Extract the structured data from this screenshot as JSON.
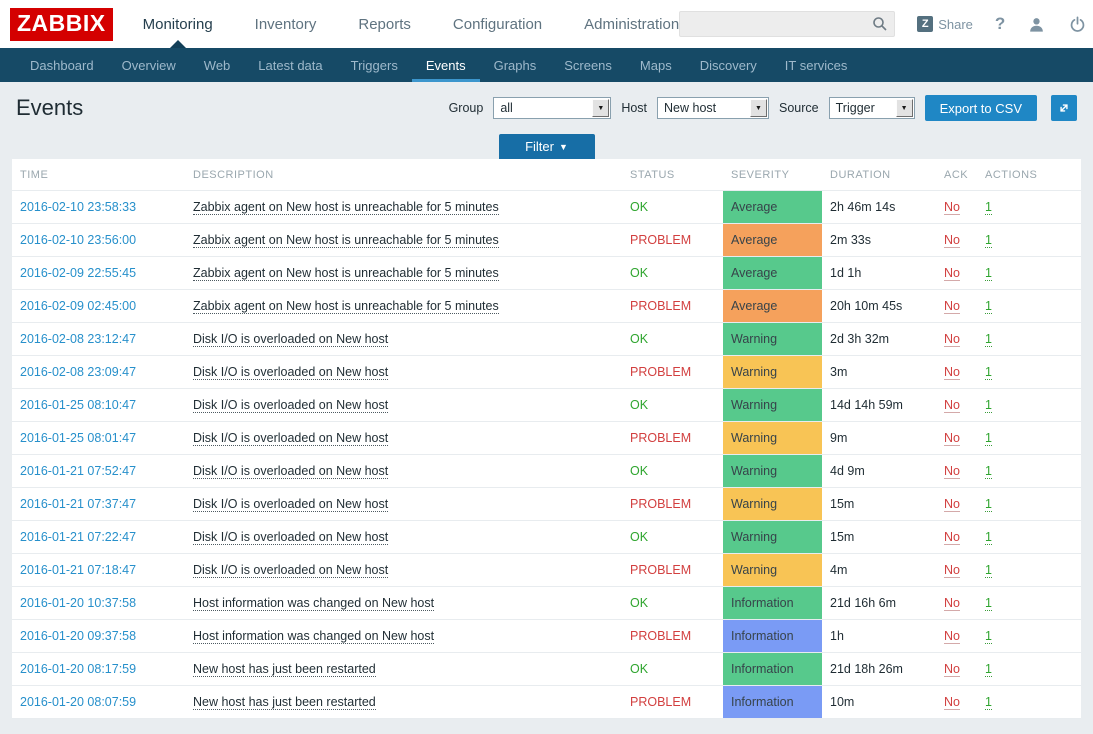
{
  "brand": {
    "logo_text": "ZABBIX"
  },
  "main_nav": {
    "items": [
      {
        "label": "Monitoring",
        "active": true
      },
      {
        "label": "Inventory",
        "active": false
      },
      {
        "label": "Reports",
        "active": false
      },
      {
        "label": "Configuration",
        "active": false
      },
      {
        "label": "Administration",
        "active": false
      }
    ]
  },
  "header_right": {
    "search_value": "",
    "search_placeholder": "",
    "share_badge": "Z",
    "share_label": "Share",
    "help_label": "?"
  },
  "sub_nav": {
    "items": [
      {
        "label": "Dashboard",
        "active": false
      },
      {
        "label": "Overview",
        "active": false
      },
      {
        "label": "Web",
        "active": false
      },
      {
        "label": "Latest data",
        "active": false
      },
      {
        "label": "Triggers",
        "active": false
      },
      {
        "label": "Events",
        "active": true
      },
      {
        "label": "Graphs",
        "active": false
      },
      {
        "label": "Screens",
        "active": false
      },
      {
        "label": "Maps",
        "active": false
      },
      {
        "label": "Discovery",
        "active": false
      },
      {
        "label": "IT services",
        "active": false
      }
    ]
  },
  "page": {
    "title": "Events",
    "filters": [
      {
        "label": "Group",
        "value": "all"
      },
      {
        "label": "Host",
        "value": "New host"
      },
      {
        "label": "Source",
        "value": "Trigger"
      }
    ],
    "export_button": "Export to CSV",
    "filter_button": "Filter"
  },
  "colors": {
    "logo_bg": "#D40000",
    "topnav_bg": "#164A66",
    "subnav_active_underline": "#3C96CD",
    "accent_blue": "#1F87C5",
    "filter_blue": "#176EA6",
    "link_blue": "#2790CB",
    "ok_green_text": "#2FA52F",
    "problem_red_text": "#D23F3F",
    "severity": {
      "green": "#57C98C",
      "orange": "#F5A15C",
      "yellow": "#F8C455",
      "blue": "#7A9BF5"
    }
  },
  "table": {
    "headers": [
      "TIME",
      "DESCRIPTION",
      "STATUS",
      "SEVERITY",
      "DURATION",
      "ACK",
      "ACTIONS"
    ],
    "rows": [
      {
        "time": "2016-02-10 23:58:33",
        "description": "Zabbix agent on New host is unreachable for 5 minutes",
        "status": "OK",
        "severity": "Average",
        "severity_color_key": "green",
        "duration": "2h 46m 14s",
        "ack": "No",
        "actions": "1"
      },
      {
        "time": "2016-02-10 23:56:00",
        "description": "Zabbix agent on New host is unreachable for 5 minutes",
        "status": "PROBLEM",
        "severity": "Average",
        "severity_color_key": "orange",
        "duration": "2m 33s",
        "ack": "No",
        "actions": "1"
      },
      {
        "time": "2016-02-09 22:55:45",
        "description": "Zabbix agent on New host is unreachable for 5 minutes",
        "status": "OK",
        "severity": "Average",
        "severity_color_key": "green",
        "duration": "1d 1h",
        "ack": "No",
        "actions": "1"
      },
      {
        "time": "2016-02-09 02:45:00",
        "description": "Zabbix agent on New host is unreachable for 5 minutes",
        "status": "PROBLEM",
        "severity": "Average",
        "severity_color_key": "orange",
        "duration": "20h 10m 45s",
        "ack": "No",
        "actions": "1"
      },
      {
        "time": "2016-02-08 23:12:47",
        "description": "Disk I/O is overloaded on New host",
        "status": "OK",
        "severity": "Warning",
        "severity_color_key": "green",
        "duration": "2d 3h 32m",
        "ack": "No",
        "actions": "1"
      },
      {
        "time": "2016-02-08 23:09:47",
        "description": "Disk I/O is overloaded on New host",
        "status": "PROBLEM",
        "severity": "Warning",
        "severity_color_key": "yellow",
        "duration": "3m",
        "ack": "No",
        "actions": "1"
      },
      {
        "time": "2016-01-25 08:10:47",
        "description": "Disk I/O is overloaded on New host",
        "status": "OK",
        "severity": "Warning",
        "severity_color_key": "green",
        "duration": "14d 14h 59m",
        "ack": "No",
        "actions": "1"
      },
      {
        "time": "2016-01-25 08:01:47",
        "description": "Disk I/O is overloaded on New host",
        "status": "PROBLEM",
        "severity": "Warning",
        "severity_color_key": "yellow",
        "duration": "9m",
        "ack": "No",
        "actions": "1"
      },
      {
        "time": "2016-01-21 07:52:47",
        "description": "Disk I/O is overloaded on New host",
        "status": "OK",
        "severity": "Warning",
        "severity_color_key": "green",
        "duration": "4d 9m",
        "ack": "No",
        "actions": "1"
      },
      {
        "time": "2016-01-21 07:37:47",
        "description": "Disk I/O is overloaded on New host",
        "status": "PROBLEM",
        "severity": "Warning",
        "severity_color_key": "yellow",
        "duration": "15m",
        "ack": "No",
        "actions": "1"
      },
      {
        "time": "2016-01-21 07:22:47",
        "description": "Disk I/O is overloaded on New host",
        "status": "OK",
        "severity": "Warning",
        "severity_color_key": "green",
        "duration": "15m",
        "ack": "No",
        "actions": "1"
      },
      {
        "time": "2016-01-21 07:18:47",
        "description": "Disk I/O is overloaded on New host",
        "status": "PROBLEM",
        "severity": "Warning",
        "severity_color_key": "yellow",
        "duration": "4m",
        "ack": "No",
        "actions": "1"
      },
      {
        "time": "2016-01-20 10:37:58",
        "description": "Host information was changed on New host",
        "status": "OK",
        "severity": "Information",
        "severity_color_key": "green",
        "duration": "21d 16h 6m",
        "ack": "No",
        "actions": "1"
      },
      {
        "time": "2016-01-20 09:37:58",
        "description": "Host information was changed on New host",
        "status": "PROBLEM",
        "severity": "Information",
        "severity_color_key": "blue",
        "duration": "1h",
        "ack": "No",
        "actions": "1"
      },
      {
        "time": "2016-01-20 08:17:59",
        "description": "New host has just been restarted",
        "status": "OK",
        "severity": "Information",
        "severity_color_key": "green",
        "duration": "21d 18h 26m",
        "ack": "No",
        "actions": "1"
      },
      {
        "time": "2016-01-20 08:07:59",
        "description": "New host has just been restarted",
        "status": "PROBLEM",
        "severity": "Information",
        "severity_color_key": "blue",
        "duration": "10m",
        "ack": "No",
        "actions": "1"
      }
    ]
  }
}
